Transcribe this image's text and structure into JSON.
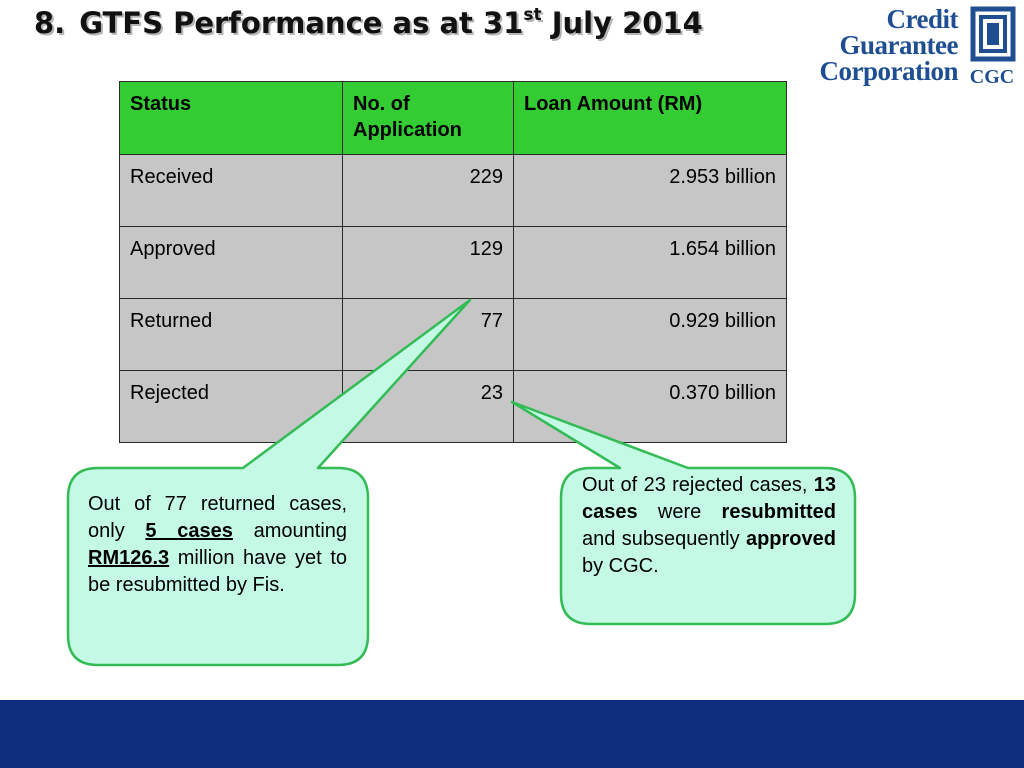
{
  "slide": {
    "number": "8.",
    "title_main": "GTFS Performance as at 31",
    "title_sup": "st",
    "title_end": " July 2014"
  },
  "logo": {
    "line1": "Credit",
    "line2": "Guarantee",
    "line3": "Corporation",
    "abbr": "CGC",
    "icon": "cgc-logo-mark",
    "color": "#1f4f92"
  },
  "table": {
    "header": [
      "Status",
      "No. of Application",
      "Loan Amount (RM)"
    ],
    "rows": [
      [
        "Received",
        "229",
        "2.953 billion"
      ],
      [
        "Approved",
        "129",
        "1.654 billion"
      ],
      [
        "Returned",
        "77",
        "0.929 billion"
      ],
      [
        "Rejected",
        "23",
        "0.370 billion"
      ]
    ],
    "header_color": "#33cc33",
    "row_color": "#c6c6c6"
  },
  "callout_left": {
    "t1": "Out of 77 returned cases, only ",
    "b1": "5 cases",
    "t2": " amounting ",
    "b2": "RM126.3",
    "t3": " million have yet to be resubmitted by Fis."
  },
  "callout_right": {
    "t1": "Out of 23 rejected cases, ",
    "b1": "13 cases",
    "t2": " were ",
    "b2": "resubmitted",
    "t3": " and subsequently ",
    "b3": "approved",
    "t4": " by CGC."
  },
  "colors": {
    "callout_fill": "#c4f9e6",
    "callout_border": "#33bb55",
    "footer": "#0f2d7d"
  }
}
